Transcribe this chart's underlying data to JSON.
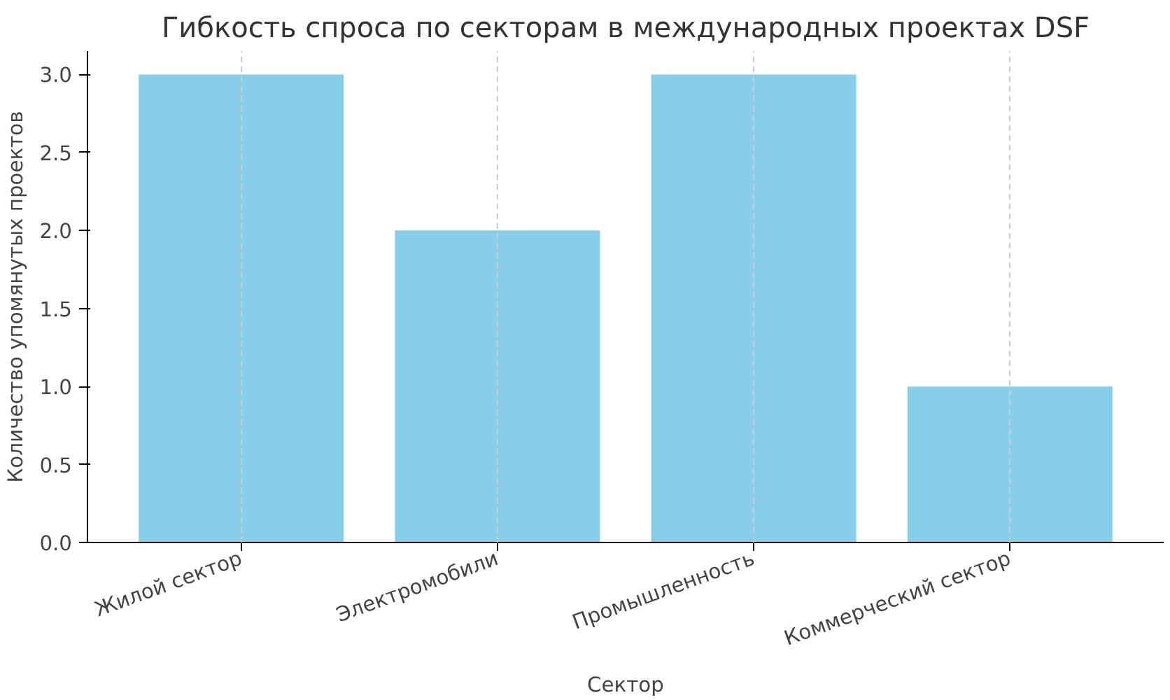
{
  "chart_data": {
    "type": "bar",
    "title": "Гибкость спроса по секторам в международных проектах DSF",
    "xlabel": "Сектор",
    "ylabel": "Количество упомянутых проектов",
    "categories": [
      "Жилой сектор",
      "Электромобили",
      "Промышленность",
      "Коммерческий сектор"
    ],
    "values": [
      3,
      2,
      3,
      1
    ],
    "color": "#87ceeb",
    "ylim": [
      0,
      3.15
    ],
    "yticks": [
      {
        "value": 0,
        "label": "0.0"
      },
      {
        "value": 0.5,
        "label": "0.5"
      },
      {
        "value": 1,
        "label": "1.0"
      },
      {
        "value": 1.5,
        "label": "1.5"
      },
      {
        "value": 2,
        "label": "2.0"
      },
      {
        "value": 2.5,
        "label": "2.5"
      },
      {
        "value": 3,
        "label": "3.0"
      }
    ],
    "grid": "x"
  }
}
